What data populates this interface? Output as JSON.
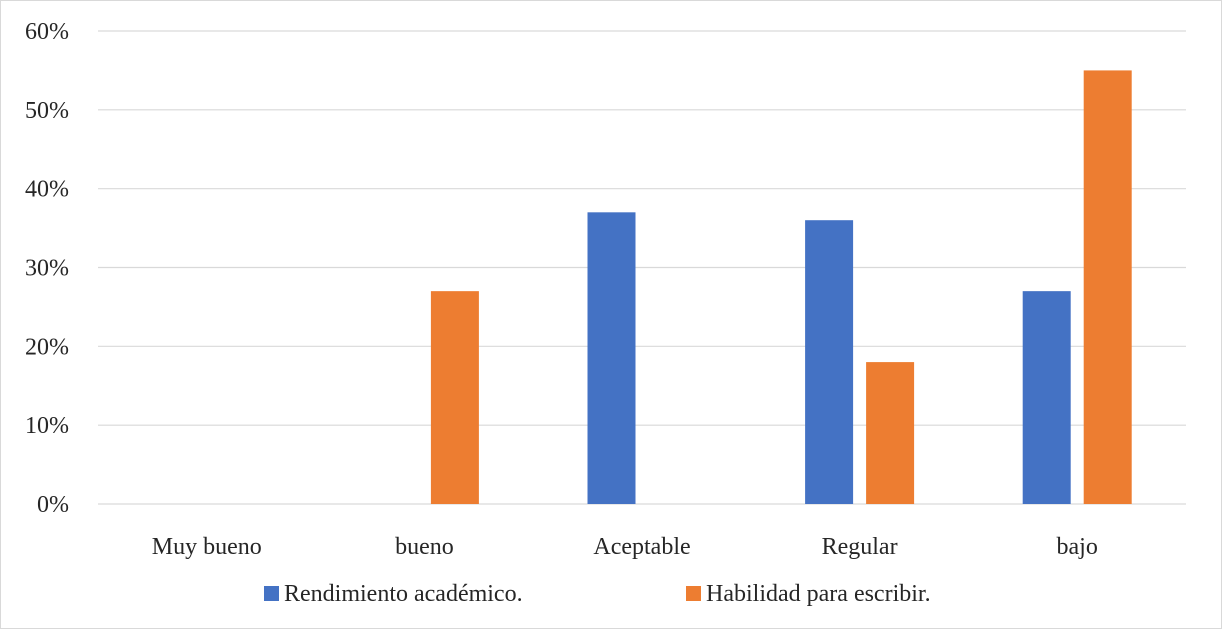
{
  "chart_data": {
    "type": "bar",
    "categories": [
      "Muy bueno",
      "bueno",
      "Aceptable",
      "Regular",
      "bajo"
    ],
    "series": [
      {
        "name": "Rendimiento académico.",
        "color": "#4472c4",
        "values": [
          0,
          0,
          37,
          36,
          27
        ]
      },
      {
        "name": "Habilidad para escribir.",
        "color": "#ed7d31",
        "values": [
          0,
          27,
          0,
          18,
          55
        ]
      }
    ],
    "yticks": [
      "0%",
      "10%",
      "20%",
      "30%",
      "40%",
      "50%",
      "60%"
    ],
    "ylim": [
      0,
      60
    ],
    "y_unit": "%",
    "grid": true,
    "legend_position": "bottom"
  }
}
